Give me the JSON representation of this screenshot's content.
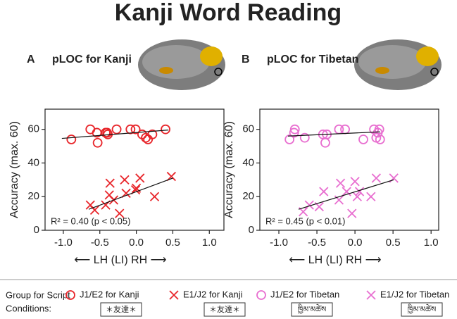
{
  "title": "Kanji Word Reading",
  "chart_data": [
    {
      "type": "scatter",
      "panel_label": "A",
      "title": "pLOC for Kanji",
      "x_label": "⟵ LH (LI) RH ⟶",
      "y_label": "Accuracy (max. 60)",
      "annotation": "R² = 0.40 (p < 0.05)",
      "xlim": [
        -1.25,
        1.2
      ],
      "ylim": [
        0,
        72
      ],
      "xticks": [
        {
          "value": -1.0,
          "label": "-1.0"
        },
        -0.5,
        {
          "value": 0,
          "label": "0.0"
        },
        0.5,
        {
          "value": 1.0,
          "label": "1.0"
        }
      ],
      "yticks": [
        0,
        20,
        40,
        60
      ],
      "series": [
        {
          "name": "J1/E2 for Kanji",
          "marker": "circle",
          "color": "#e8252a",
          "x": [
            -0.89,
            -0.63,
            -0.54,
            -0.53,
            -0.42,
            -0.4,
            -0.39,
            -0.27,
            -0.08,
            -0.01,
            0.08,
            0.13,
            0.16,
            0.22,
            0.4
          ],
          "values": [
            54,
            60,
            58,
            52,
            58,
            58,
            57,
            60,
            60,
            60,
            57,
            55,
            54,
            57,
            60
          ],
          "fit": {
            "x": [
              -1.02,
              0.44
            ],
            "y": [
              54.6,
              59.6
            ]
          }
        },
        {
          "name": "E1/J2 for Kanji",
          "marker": "cross",
          "color": "#e8252a",
          "x": [
            -0.63,
            -0.57,
            -0.42,
            -0.37,
            -0.36,
            -0.31,
            -0.23,
            -0.16,
            -0.14,
            -0.01,
            0.0,
            0.05,
            0.25,
            0.48
          ],
          "values": [
            15,
            12,
            15,
            21,
            28,
            18,
            10,
            30,
            22,
            24,
            25,
            31,
            20,
            32
          ],
          "fit": {
            "x": [
              -0.65,
              0.5
            ],
            "y": [
              12.5,
              31
            ]
          }
        }
      ]
    },
    {
      "type": "scatter",
      "panel_label": "B",
      "title": "pLOC for Tibetan",
      "x_label": "⟵ LH (LI) RH ⟶",
      "y_label": "Accuracy (max. 60)",
      "annotation": "R² = 0.45 (p < 0.01)",
      "xlim": [
        -1.25,
        1.1
      ],
      "ylim": [
        0,
        72
      ],
      "xticks": [
        {
          "value": -1.0,
          "label": "-1.0"
        },
        -0.5,
        {
          "value": 0,
          "label": "0.0"
        },
        0.5,
        {
          "value": 1.0,
          "label": "1.0"
        }
      ],
      "yticks": [
        0,
        20,
        40,
        60
      ],
      "series": [
        {
          "name": "J1/E2 for Tibetan",
          "marker": "circle",
          "color": "#e86fd0",
          "x": [
            -0.86,
            -0.8,
            -0.79,
            -0.66,
            -0.42,
            -0.39,
            -0.37,
            -0.21,
            -0.13,
            0.11,
            0.25,
            0.28,
            0.3,
            0.32,
            0.33
          ],
          "values": [
            54,
            58,
            60,
            55,
            57,
            52,
            57,
            60,
            60,
            54,
            60,
            55,
            58,
            60,
            54
          ],
          "fit": {
            "x": [
              -0.88,
              0.33
            ],
            "y": [
              56,
              58.5
            ]
          }
        },
        {
          "name": "E1/J2 for Tibetan",
          "marker": "cross",
          "color": "#e86fd0",
          "x": [
            -0.68,
            -0.6,
            -0.47,
            -0.41,
            -0.21,
            -0.19,
            -0.11,
            -0.04,
            0.0,
            0.06,
            0.03,
            0.21,
            0.28,
            0.51
          ],
          "values": [
            11,
            15,
            14,
            23,
            18,
            28,
            23,
            10,
            29,
            23,
            20,
            20,
            31,
            31
          ],
          "fit": {
            "x": [
              -0.74,
              0.51
            ],
            "y": [
              12.5,
              30
            ]
          }
        }
      ]
    }
  ],
  "legend": {
    "title": [
      "Group for Script",
      "Conditions:"
    ],
    "samples": [
      "＊友達＊",
      "＊友達＊",
      "ཁྱིམ་མཚེས",
      "ཁྱིམ་མཚེས"
    ]
  }
}
